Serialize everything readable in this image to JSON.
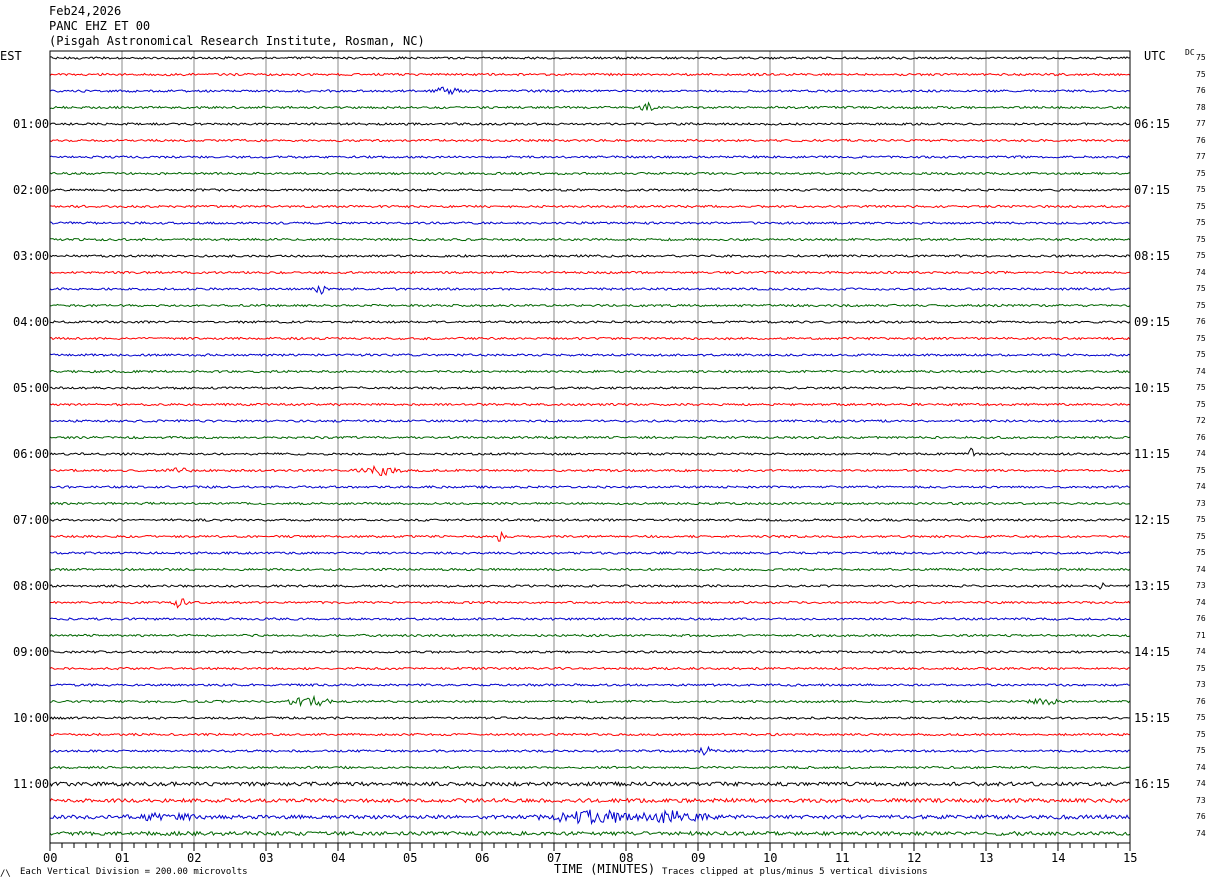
{
  "header": {
    "date": "Feb24,2026",
    "station": "PANC EHZ ET 00",
    "location": "(Pisgah Astronomical Research Institute, Rosman, NC)"
  },
  "left_zone_label": "EST",
  "right_zone_label": "UTC",
  "dc_label": "DC",
  "footer": {
    "corner_mark": "/\\",
    "scale_note": "Each Vertical Division =  200.00 microvolts",
    "clip_note": "Traces clipped at plus/minus 5 vertical divisions"
  },
  "colors": {
    "trace_cycle": [
      "#000000",
      "#ff0000",
      "#0000cc",
      "#006600"
    ],
    "grid": "#888888",
    "frame": "#000000"
  },
  "chart_data": {
    "type": "line",
    "xlabel": "TIME (MINUTES)",
    "xlim": [
      0,
      15
    ],
    "x_ticks": [
      "00",
      "01",
      "02",
      "03",
      "04",
      "05",
      "06",
      "07",
      "08",
      "09",
      "10",
      "11",
      "12",
      "13",
      "14",
      "15"
    ],
    "left_time_labels": [
      "01:00",
      "02:00",
      "03:00",
      "04:00",
      "05:00",
      "06:00",
      "07:00",
      "08:00",
      "09:00",
      "10:00",
      "11:00"
    ],
    "right_time_labels": [
      "06:15",
      "07:15",
      "08:15",
      "09:15",
      "10:15",
      "11:15",
      "12:15",
      "13:15",
      "14:15",
      "15:15",
      "16:15"
    ],
    "dc_offsets": [
      75,
      75,
      76,
      78,
      77,
      76,
      77,
      75,
      75,
      75,
      75,
      75,
      75,
      74,
      75,
      75,
      76,
      75,
      75,
      74,
      75,
      75,
      72,
      76,
      74,
      75,
      74,
      73,
      75,
      75,
      75,
      74,
      73,
      74,
      76,
      71,
      74,
      75,
      73,
      76,
      75,
      75,
      75,
      74,
      74,
      73,
      76,
      74
    ],
    "traces_per_hour": 4,
    "minutes_per_trace": 15
  }
}
